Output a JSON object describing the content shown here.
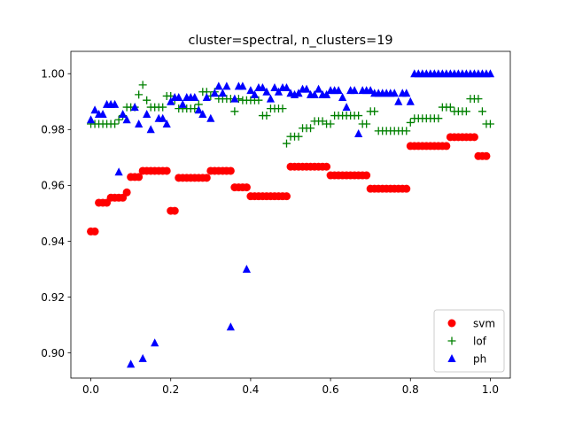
{
  "chart_data": {
    "type": "scatter",
    "title": "cluster=spectral, n_clusters=19",
    "xlabel": "",
    "ylabel": "",
    "xlim": [
      -0.05,
      1.05
    ],
    "ylim": [
      0.891,
      1.008
    ],
    "xticks": [
      0.0,
      0.2,
      0.4,
      0.6,
      0.8,
      1.0
    ],
    "xtick_labels": [
      "0.0",
      "0.2",
      "0.4",
      "0.6",
      "0.8",
      "1.0"
    ],
    "yticks": [
      0.9,
      0.92,
      0.94,
      0.96,
      0.98,
      1.0
    ],
    "ytick_labels": [
      "0.90",
      "0.92",
      "0.94",
      "0.96",
      "0.98",
      "1.00"
    ],
    "grid": false,
    "legend_position": "lower-right",
    "series": [
      {
        "name": "svm",
        "color": "#ff0000",
        "marker": "circle",
        "points": [
          [
            0.0,
            0.9435
          ],
          [
            0.01,
            0.9435
          ],
          [
            0.02,
            0.9538
          ],
          [
            0.03,
            0.9538
          ],
          [
            0.04,
            0.9538
          ],
          [
            0.05,
            0.9556
          ],
          [
            0.06,
            0.9556
          ],
          [
            0.07,
            0.9556
          ],
          [
            0.08,
            0.9556
          ],
          [
            0.09,
            0.9575
          ],
          [
            0.1,
            0.963
          ],
          [
            0.11,
            0.963
          ],
          [
            0.12,
            0.963
          ],
          [
            0.13,
            0.9652
          ],
          [
            0.14,
            0.9652
          ],
          [
            0.15,
            0.9652
          ],
          [
            0.16,
            0.9652
          ],
          [
            0.17,
            0.9652
          ],
          [
            0.18,
            0.9652
          ],
          [
            0.19,
            0.9652
          ],
          [
            0.2,
            0.9509
          ],
          [
            0.21,
            0.9509
          ],
          [
            0.22,
            0.9627
          ],
          [
            0.23,
            0.9627
          ],
          [
            0.24,
            0.9627
          ],
          [
            0.25,
            0.9627
          ],
          [
            0.26,
            0.9627
          ],
          [
            0.27,
            0.9627
          ],
          [
            0.28,
            0.9627
          ],
          [
            0.29,
            0.9627
          ],
          [
            0.3,
            0.9652
          ],
          [
            0.31,
            0.9652
          ],
          [
            0.32,
            0.9652
          ],
          [
            0.33,
            0.9652
          ],
          [
            0.34,
            0.9652
          ],
          [
            0.35,
            0.9652
          ],
          [
            0.36,
            0.9593
          ],
          [
            0.37,
            0.9593
          ],
          [
            0.38,
            0.9593
          ],
          [
            0.39,
            0.9593
          ],
          [
            0.4,
            0.9561
          ],
          [
            0.41,
            0.9561
          ],
          [
            0.42,
            0.9561
          ],
          [
            0.43,
            0.9561
          ],
          [
            0.44,
            0.9561
          ],
          [
            0.45,
            0.9561
          ],
          [
            0.46,
            0.9561
          ],
          [
            0.47,
            0.9561
          ],
          [
            0.48,
            0.9561
          ],
          [
            0.49,
            0.9561
          ],
          [
            0.5,
            0.9667
          ],
          [
            0.51,
            0.9667
          ],
          [
            0.52,
            0.9667
          ],
          [
            0.53,
            0.9667
          ],
          [
            0.54,
            0.9667
          ],
          [
            0.55,
            0.9667
          ],
          [
            0.56,
            0.9667
          ],
          [
            0.57,
            0.9667
          ],
          [
            0.58,
            0.9667
          ],
          [
            0.59,
            0.9667
          ],
          [
            0.6,
            0.9636
          ],
          [
            0.61,
            0.9636
          ],
          [
            0.62,
            0.9636
          ],
          [
            0.63,
            0.9636
          ],
          [
            0.64,
            0.9636
          ],
          [
            0.65,
            0.9636
          ],
          [
            0.66,
            0.9636
          ],
          [
            0.67,
            0.9636
          ],
          [
            0.68,
            0.9636
          ],
          [
            0.69,
            0.9636
          ],
          [
            0.7,
            0.9588
          ],
          [
            0.71,
            0.9588
          ],
          [
            0.72,
            0.9588
          ],
          [
            0.73,
            0.9588
          ],
          [
            0.74,
            0.9588
          ],
          [
            0.75,
            0.9588
          ],
          [
            0.76,
            0.9588
          ],
          [
            0.77,
            0.9588
          ],
          [
            0.78,
            0.9588
          ],
          [
            0.79,
            0.9588
          ],
          [
            0.8,
            0.9741
          ],
          [
            0.81,
            0.9741
          ],
          [
            0.82,
            0.9741
          ],
          [
            0.83,
            0.9741
          ],
          [
            0.84,
            0.9741
          ],
          [
            0.85,
            0.9741
          ],
          [
            0.86,
            0.9741
          ],
          [
            0.87,
            0.9741
          ],
          [
            0.88,
            0.9741
          ],
          [
            0.89,
            0.9741
          ],
          [
            0.9,
            0.9773
          ],
          [
            0.91,
            0.9773
          ],
          [
            0.92,
            0.9773
          ],
          [
            0.93,
            0.9773
          ],
          [
            0.94,
            0.9773
          ],
          [
            0.95,
            0.9773
          ],
          [
            0.96,
            0.9773
          ],
          [
            0.97,
            0.9705
          ],
          [
            0.98,
            0.9705
          ],
          [
            0.99,
            0.9705
          ]
        ]
      },
      {
        "name": "lof",
        "color": "#008000",
        "marker": "plus",
        "points": [
          [
            0.0,
            0.982
          ],
          [
            0.01,
            0.982
          ],
          [
            0.02,
            0.982
          ],
          [
            0.03,
            0.982
          ],
          [
            0.04,
            0.982
          ],
          [
            0.05,
            0.982
          ],
          [
            0.06,
            0.982
          ],
          [
            0.07,
            0.9835
          ],
          [
            0.08,
            0.985
          ],
          [
            0.09,
            0.988
          ],
          [
            0.1,
            0.988
          ],
          [
            0.11,
            0.988
          ],
          [
            0.12,
            0.9925
          ],
          [
            0.13,
            0.996
          ],
          [
            0.14,
            0.9905
          ],
          [
            0.15,
            0.988
          ],
          [
            0.16,
            0.988
          ],
          [
            0.17,
            0.988
          ],
          [
            0.18,
            0.988
          ],
          [
            0.19,
            0.992
          ],
          [
            0.2,
            0.992
          ],
          [
            0.21,
            0.9905
          ],
          [
            0.22,
            0.9875
          ],
          [
            0.23,
            0.9875
          ],
          [
            0.24,
            0.9875
          ],
          [
            0.25,
            0.9875
          ],
          [
            0.26,
            0.9875
          ],
          [
            0.27,
            0.989
          ],
          [
            0.28,
            0.9935
          ],
          [
            0.29,
            0.9935
          ],
          [
            0.3,
            0.992
          ],
          [
            0.31,
            0.9935
          ],
          [
            0.32,
            0.991
          ],
          [
            0.33,
            0.991
          ],
          [
            0.34,
            0.991
          ],
          [
            0.35,
            0.991
          ],
          [
            0.36,
            0.9865
          ],
          [
            0.37,
            0.991
          ],
          [
            0.38,
            0.9905
          ],
          [
            0.39,
            0.9905
          ],
          [
            0.4,
            0.9905
          ],
          [
            0.41,
            0.9905
          ],
          [
            0.42,
            0.9905
          ],
          [
            0.43,
            0.985
          ],
          [
            0.44,
            0.985
          ],
          [
            0.45,
            0.9875
          ],
          [
            0.46,
            0.9875
          ],
          [
            0.47,
            0.9875
          ],
          [
            0.48,
            0.9875
          ],
          [
            0.49,
            0.975
          ],
          [
            0.5,
            0.9775
          ],
          [
            0.51,
            0.9775
          ],
          [
            0.52,
            0.9775
          ],
          [
            0.53,
            0.9805
          ],
          [
            0.54,
            0.9805
          ],
          [
            0.55,
            0.9805
          ],
          [
            0.56,
            0.983
          ],
          [
            0.57,
            0.983
          ],
          [
            0.58,
            0.983
          ],
          [
            0.59,
            0.982
          ],
          [
            0.6,
            0.982
          ],
          [
            0.61,
            0.985
          ],
          [
            0.62,
            0.985
          ],
          [
            0.63,
            0.985
          ],
          [
            0.64,
            0.985
          ],
          [
            0.65,
            0.985
          ],
          [
            0.66,
            0.985
          ],
          [
            0.67,
            0.985
          ],
          [
            0.68,
            0.982
          ],
          [
            0.69,
            0.982
          ],
          [
            0.7,
            0.9865
          ],
          [
            0.71,
            0.9865
          ],
          [
            0.72,
            0.9795
          ],
          [
            0.73,
            0.9795
          ],
          [
            0.74,
            0.9795
          ],
          [
            0.75,
            0.9795
          ],
          [
            0.76,
            0.9795
          ],
          [
            0.77,
            0.9795
          ],
          [
            0.78,
            0.9795
          ],
          [
            0.79,
            0.9795
          ],
          [
            0.8,
            0.9825
          ],
          [
            0.81,
            0.984
          ],
          [
            0.82,
            0.984
          ],
          [
            0.83,
            0.984
          ],
          [
            0.84,
            0.984
          ],
          [
            0.85,
            0.984
          ],
          [
            0.86,
            0.984
          ],
          [
            0.87,
            0.984
          ],
          [
            0.88,
            0.988
          ],
          [
            0.89,
            0.988
          ],
          [
            0.9,
            0.988
          ],
          [
            0.91,
            0.9865
          ],
          [
            0.92,
            0.9865
          ],
          [
            0.93,
            0.9865
          ],
          [
            0.94,
            0.9865
          ],
          [
            0.95,
            0.991
          ],
          [
            0.96,
            0.991
          ],
          [
            0.97,
            0.991
          ],
          [
            0.98,
            0.9865
          ],
          [
            0.99,
            0.982
          ],
          [
            1.0,
            0.982
          ]
        ]
      },
      {
        "name": "ph",
        "color": "#0000ff",
        "marker": "triangle",
        "points": [
          [
            0.0,
            0.9835
          ],
          [
            0.01,
            0.987
          ],
          [
            0.02,
            0.9855
          ],
          [
            0.03,
            0.9855
          ],
          [
            0.04,
            0.989
          ],
          [
            0.05,
            0.989
          ],
          [
            0.06,
            0.989
          ],
          [
            0.07,
            0.9648
          ],
          [
            0.08,
            0.9855
          ],
          [
            0.09,
            0.9835
          ],
          [
            0.1,
            0.896
          ],
          [
            0.11,
            0.988
          ],
          [
            0.12,
            0.982
          ],
          [
            0.13,
            0.898
          ],
          [
            0.14,
            0.9855
          ],
          [
            0.15,
            0.98
          ],
          [
            0.16,
            0.9036
          ],
          [
            0.17,
            0.984
          ],
          [
            0.18,
            0.984
          ],
          [
            0.19,
            0.982
          ],
          [
            0.2,
            0.99
          ],
          [
            0.21,
            0.9915
          ],
          [
            0.22,
            0.9915
          ],
          [
            0.23,
            0.989
          ],
          [
            0.24,
            0.9915
          ],
          [
            0.25,
            0.9915
          ],
          [
            0.26,
            0.9915
          ],
          [
            0.27,
            0.987
          ],
          [
            0.28,
            0.9855
          ],
          [
            0.29,
            0.9915
          ],
          [
            0.3,
            0.984
          ],
          [
            0.31,
            0.993
          ],
          [
            0.32,
            0.9955
          ],
          [
            0.33,
            0.993
          ],
          [
            0.34,
            0.9955
          ],
          [
            0.35,
            0.9093
          ],
          [
            0.36,
            0.991
          ],
          [
            0.37,
            0.9955
          ],
          [
            0.38,
            0.9955
          ],
          [
            0.39,
            0.93
          ],
          [
            0.4,
            0.994
          ],
          [
            0.41,
            0.9925
          ],
          [
            0.42,
            0.995
          ],
          [
            0.43,
            0.995
          ],
          [
            0.44,
            0.9935
          ],
          [
            0.45,
            0.991
          ],
          [
            0.46,
            0.995
          ],
          [
            0.47,
            0.9935
          ],
          [
            0.48,
            0.995
          ],
          [
            0.49,
            0.995
          ],
          [
            0.5,
            0.993
          ],
          [
            0.51,
            0.9925
          ],
          [
            0.52,
            0.993
          ],
          [
            0.53,
            0.9945
          ],
          [
            0.54,
            0.9945
          ],
          [
            0.55,
            0.9925
          ],
          [
            0.56,
            0.9925
          ],
          [
            0.57,
            0.9945
          ],
          [
            0.58,
            0.9925
          ],
          [
            0.59,
            0.9925
          ],
          [
            0.6,
            0.994
          ],
          [
            0.61,
            0.994
          ],
          [
            0.62,
            0.994
          ],
          [
            0.63,
            0.9915
          ],
          [
            0.64,
            0.988
          ],
          [
            0.65,
            0.994
          ],
          [
            0.66,
            0.994
          ],
          [
            0.67,
            0.9785
          ],
          [
            0.68,
            0.994
          ],
          [
            0.69,
            0.994
          ],
          [
            0.7,
            0.994
          ],
          [
            0.71,
            0.993
          ],
          [
            0.72,
            0.993
          ],
          [
            0.73,
            0.993
          ],
          [
            0.74,
            0.993
          ],
          [
            0.75,
            0.993
          ],
          [
            0.76,
            0.993
          ],
          [
            0.77,
            0.99
          ],
          [
            0.78,
            0.993
          ],
          [
            0.79,
            0.993
          ],
          [
            0.8,
            0.99
          ],
          [
            0.81,
            1.0
          ],
          [
            0.82,
            1.0
          ],
          [
            0.83,
            1.0
          ],
          [
            0.84,
            1.0
          ],
          [
            0.85,
            1.0
          ],
          [
            0.86,
            1.0
          ],
          [
            0.87,
            1.0
          ],
          [
            0.88,
            1.0
          ],
          [
            0.89,
            1.0
          ],
          [
            0.9,
            1.0
          ],
          [
            0.91,
            1.0
          ],
          [
            0.92,
            1.0
          ],
          [
            0.93,
            1.0
          ],
          [
            0.94,
            1.0
          ],
          [
            0.95,
            1.0
          ],
          [
            0.96,
            1.0
          ],
          [
            0.97,
            1.0
          ],
          [
            0.98,
            1.0
          ],
          [
            0.99,
            1.0
          ],
          [
            1.0,
            1.0
          ]
        ]
      }
    ]
  }
}
